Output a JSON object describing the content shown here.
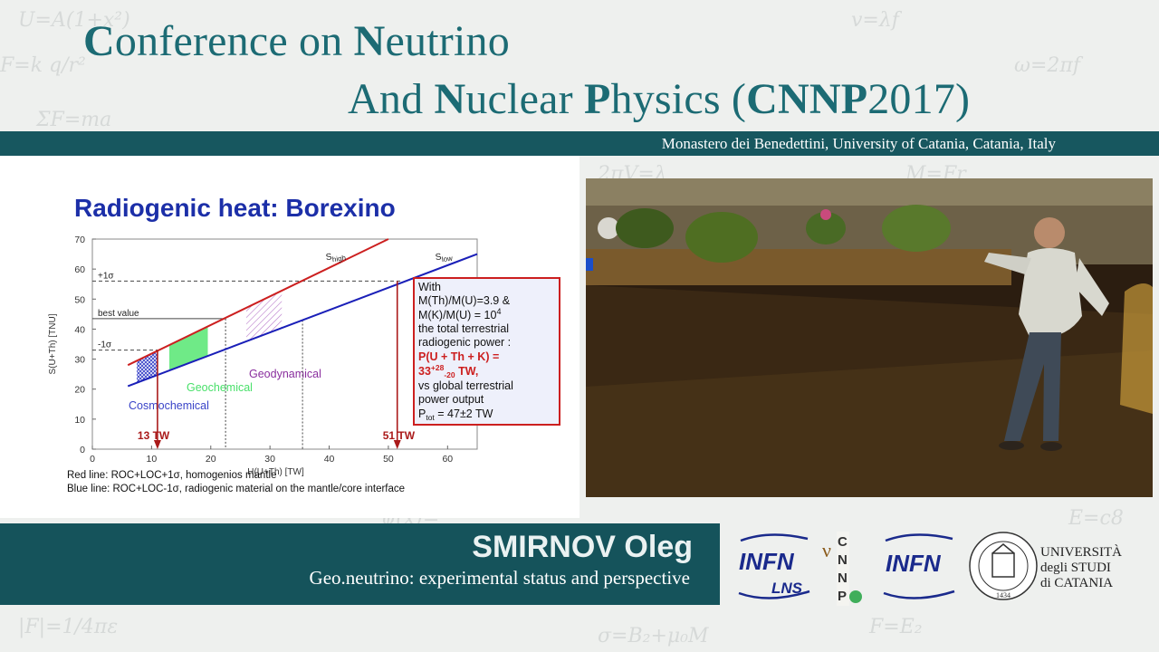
{
  "conference": {
    "line1_parts": [
      {
        "text": "C",
        "bold": true
      },
      {
        "text": "onference on ",
        "bold": false
      },
      {
        "text": "N",
        "bold": true
      },
      {
        "text": "eutrino",
        "bold": false
      }
    ],
    "line2_parts": [
      {
        "text": "And ",
        "bold": false
      },
      {
        "text": "N",
        "bold": true
      },
      {
        "text": "uclear ",
        "bold": false
      },
      {
        "text": "P",
        "bold": true
      },
      {
        "text": "hysics (",
        "bold": false
      },
      {
        "text": "CNNP",
        "bold": true
      },
      {
        "text": "2017)",
        "bold": false
      }
    ],
    "venue": "Monastero dei Benedettini, University of Catania, Catania, Italy"
  },
  "slide": {
    "title": "Radiogenic heat: Borexino",
    "caption_red": "Red line: ROC+LOC+1σ, homogenios mantle",
    "caption_blue": "Blue line: ROC+LOC-1σ, radiogenic material on the mantle/core interface",
    "textbox_lines": [
      "With",
      "M(Th)/M(U)=3.9  &",
      "M(K)/M(U) = 10",
      "the total  terrestrial",
      "radiogenic power :",
      "P(U + Th + K) =",
      "33",
      "vs global terrestrial",
      "power output",
      "P",
      " = 47±2 TW"
    ],
    "textbox_sup_exp": "4",
    "textbox_plus": "+28",
    "textbox_minus": "-20",
    "textbox_tw": " TW,",
    "textbox_tot_sub": "tot"
  },
  "chart_data": {
    "type": "line",
    "xlabel": "H(U+Th) [TW]",
    "ylabel": "S(U+Th) [TNU]",
    "xlim": [
      0,
      65
    ],
    "ylim": [
      0,
      70
    ],
    "x_ticks": [
      0,
      10,
      20,
      30,
      40,
      50,
      60
    ],
    "y_ticks": [
      0,
      10,
      20,
      30,
      40,
      50,
      60,
      70
    ],
    "series": [
      {
        "name": "S_high",
        "color": "#cc1f1f",
        "x": [
          6,
          50
        ],
        "y": [
          28,
          70
        ]
      },
      {
        "name": "S_low",
        "color": "#1a1fb8",
        "x": [
          6,
          65
        ],
        "y": [
          21,
          65
        ]
      }
    ],
    "reference_lines": [
      {
        "label": "+1σ",
        "y": 56
      },
      {
        "label": "best value",
        "y": 43.5
      },
      {
        "label": "-1σ",
        "y": 33
      }
    ],
    "regions": [
      {
        "label": "Cosmochemical",
        "color": "#3a44c8",
        "x": [
          7.5,
          11
        ]
      },
      {
        "label": "Geochemical",
        "color": "#49e06a",
        "x": [
          13,
          19.5
        ]
      },
      {
        "label": "Geodynamical",
        "color": "#8a2e9e",
        "x": [
          26,
          32
        ]
      }
    ],
    "arrows": [
      {
        "label": "13 TW",
        "x": 11
      },
      {
        "label": "51 TW",
        "x": 51.5
      }
    ],
    "range_lines_x": [
      22.5,
      35.5
    ]
  },
  "speaker": {
    "name": "SMIRNOV Oleg",
    "talk_title": "Geo.neutrino: experimental status and perspective"
  },
  "logos": {
    "infn_text": "INFN",
    "lns_text": "LNS",
    "cnnp_letters": [
      "C",
      "N",
      "N",
      "P"
    ],
    "nu_symbol": "ν",
    "unict_lines": [
      "UNIVERSITÀ",
      "degli STUDI",
      "di CATANIA"
    ],
    "seal_year": "1434"
  },
  "colors": {
    "teal": "#17575f",
    "title_teal": "#1c6b74",
    "slide_blue": "#1c2fa8",
    "textbox_red": "#cc1f1f"
  }
}
